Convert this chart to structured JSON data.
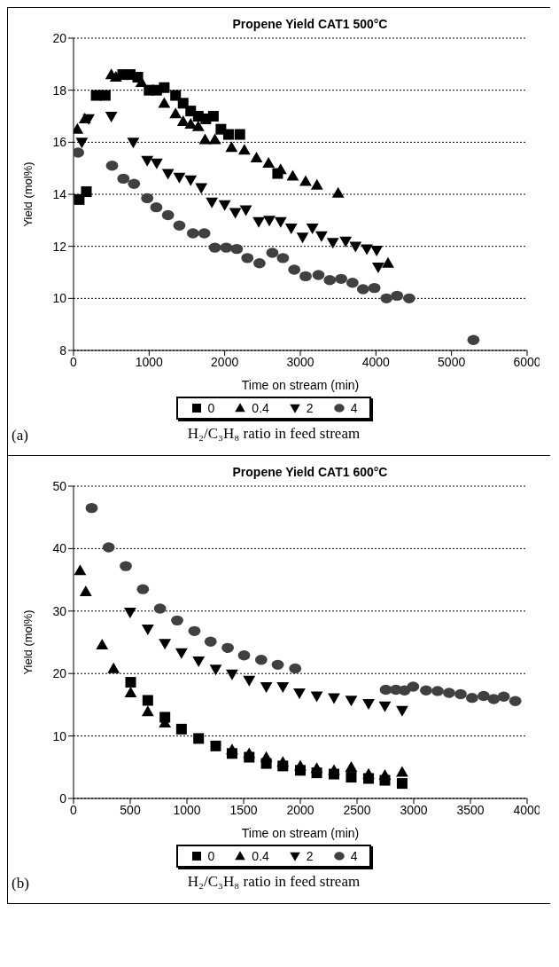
{
  "chart_data": [
    {
      "type": "scatter",
      "title": "Propene Yield CAT1 500°C",
      "xlabel": "Time on stream (min)",
      "ylabel": "Yield  (mol%)",
      "legend_title": "H₂/C₃H₈ ratio in feed stream",
      "annotations": [
        "(a)"
      ],
      "legend": "bottom",
      "grid": "y",
      "xlim": [
        0,
        6000
      ],
      "xticks": [
        0,
        1000,
        2000,
        3000,
        4000,
        5000,
        6000
      ],
      "ylim": [
        8,
        20
      ],
      "yticks": [
        8,
        10,
        12,
        14,
        16,
        18,
        20
      ],
      "series": [
        {
          "name": "0",
          "color": "#000000",
          "marker": "square",
          "x": [
            75,
            170,
            300,
            420,
            650,
            750,
            850,
            1000,
            1100,
            1200,
            1350,
            1450,
            1550,
            1650,
            1750,
            1850,
            1950,
            2050,
            2200,
            2700
          ],
          "values": [
            13.8,
            14.1,
            17.8,
            17.8,
            18.6,
            18.6,
            18.5,
            18.0,
            18.0,
            18.1,
            17.8,
            17.5,
            17.2,
            17.0,
            16.9,
            17.0,
            16.5,
            16.3,
            16.3,
            14.8
          ]
        },
        {
          "name": "0.4",
          "color": "#000000",
          "marker": "triangle",
          "x": [
            50,
            150,
            500,
            560,
            900,
            1200,
            1350,
            1450,
            1550,
            1650,
            1740,
            1870,
            2090,
            2260,
            2420,
            2580,
            2740,
            2900,
            3070,
            3220,
            3500,
            4160
          ],
          "values": [
            16.5,
            16.9,
            18.6,
            18.5,
            18.3,
            17.5,
            17.1,
            16.8,
            16.7,
            16.6,
            16.1,
            16.1,
            15.8,
            15.7,
            15.4,
            15.2,
            14.95,
            14.7,
            14.5,
            14.35,
            14.05,
            11.35
          ]
        },
        {
          "name": "2",
          "color": "#000000",
          "marker": "triangle-down",
          "x": [
            110,
            200,
            500,
            790,
            975,
            1100,
            1250,
            1400,
            1550,
            1690,
            1830,
            2000,
            2140,
            2280,
            2450,
            2590,
            2740,
            2880,
            3030,
            3160,
            3280,
            3430,
            3600,
            3730,
            3880,
            4010,
            4030
          ],
          "values": [
            16.0,
            16.9,
            17.0,
            16.0,
            15.3,
            15.2,
            14.8,
            14.65,
            14.55,
            14.25,
            13.7,
            13.6,
            13.3,
            13.4,
            12.95,
            13.0,
            12.95,
            12.7,
            12.35,
            12.7,
            12.4,
            12.15,
            12.2,
            12.0,
            11.9,
            11.85,
            11.2
          ]
        },
        {
          "name": "4",
          "color": "#404040",
          "marker": "circle",
          "x": [
            60,
            510,
            660,
            800,
            975,
            1095,
            1250,
            1400,
            1580,
            1730,
            1870,
            2020,
            2160,
            2300,
            2460,
            2630,
            2770,
            2920,
            3070,
            3240,
            3390,
            3540,
            3690,
            3830,
            3980,
            4140,
            4280,
            4440,
            5290
          ],
          "values": [
            15.6,
            15.1,
            14.6,
            14.4,
            13.85,
            13.5,
            13.2,
            12.8,
            12.5,
            12.5,
            11.95,
            11.95,
            11.9,
            11.55,
            11.35,
            11.75,
            11.55,
            11.1,
            10.85,
            10.9,
            10.7,
            10.75,
            10.6,
            10.35,
            10.4,
            10.0,
            10.1,
            10.0,
            8.4
          ]
        }
      ]
    },
    {
      "type": "scatter",
      "title": "Propene Yield CAT1 600°C",
      "xlabel": "Time on stream (min)",
      "ylabel": "Yield (mol%)",
      "legend_title": "H₂/C₃H₈ ratio in feed stream",
      "annotations": [
        "(b)"
      ],
      "legend": "bottom",
      "grid": "y",
      "xlim": [
        0,
        4000
      ],
      "xticks": [
        0,
        500,
        1000,
        1500,
        2000,
        2500,
        3000,
        3500,
        4000
      ],
      "ylim": [
        0,
        50
      ],
      "yticks": [
        0,
        10,
        20,
        30,
        40,
        50
      ],
      "series": [
        {
          "name": "0",
          "color": "#000000",
          "marker": "square",
          "x": [
            504,
            655,
            806,
            952,
            1103,
            1254,
            1398,
            1549,
            1700,
            1846,
            2000,
            2145,
            2297,
            2449,
            2602,
            2746,
            2898
          ],
          "values": [
            18.6,
            15.7,
            13.0,
            11.1,
            9.6,
            8.4,
            7.2,
            6.6,
            5.6,
            5.2,
            4.5,
            4.1,
            3.9,
            3.4,
            3.2,
            2.9,
            2.4
          ]
        },
        {
          "name": "0.4",
          "color": "#000000",
          "marker": "triangle",
          "x": [
            58,
            108,
            252,
            353,
            504,
            655,
            806,
            1398,
            1549,
            1700,
            1846,
            2000,
            2145,
            2297,
            2449,
            2602,
            2746,
            2898
          ],
          "values": [
            36.5,
            33.1,
            24.6,
            20.8,
            16.9,
            13.9,
            12.1,
            7.8,
            7.2,
            6.6,
            5.8,
            5.2,
            4.8,
            4.5,
            5.0,
            3.9,
            3.7,
            4.2
          ]
        },
        {
          "name": "2",
          "color": "#000000",
          "marker": "triangle-down",
          "x": [
            499,
            655,
            806,
            952,
            1103,
            1254,
            1398,
            1549,
            1700,
            1846,
            1992,
            2145,
            2297,
            2449,
            2602,
            2746,
            2898
          ],
          "values": [
            29.8,
            27.1,
            24.8,
            23.3,
            22.0,
            20.7,
            19.9,
            18.9,
            17.9,
            17.9,
            16.9,
            16.4,
            16.1,
            15.7,
            15.2,
            14.8,
            14.1
          ]
        },
        {
          "name": "4",
          "color": "#404040",
          "marker": "circle",
          "x": [
            160,
            310,
            461,
            612,
            763,
            914,
            1066,
            1209,
            1360,
            1504,
            1655,
            1801,
            1955,
            2754,
            2843,
            2919,
            2995,
            3109,
            3211,
            3312,
            3414,
            3515,
            3617,
            3706,
            3794,
            3896
          ],
          "values": [
            46.5,
            40.2,
            37.2,
            33.5,
            30.4,
            28.5,
            26.8,
            25.1,
            24.1,
            22.9,
            22.2,
            21.4,
            20.8,
            17.4,
            17.4,
            17.3,
            17.9,
            17.3,
            17.2,
            16.9,
            16.7,
            16.1,
            16.4,
            15.9,
            16.3,
            15.6
          ]
        }
      ]
    }
  ]
}
